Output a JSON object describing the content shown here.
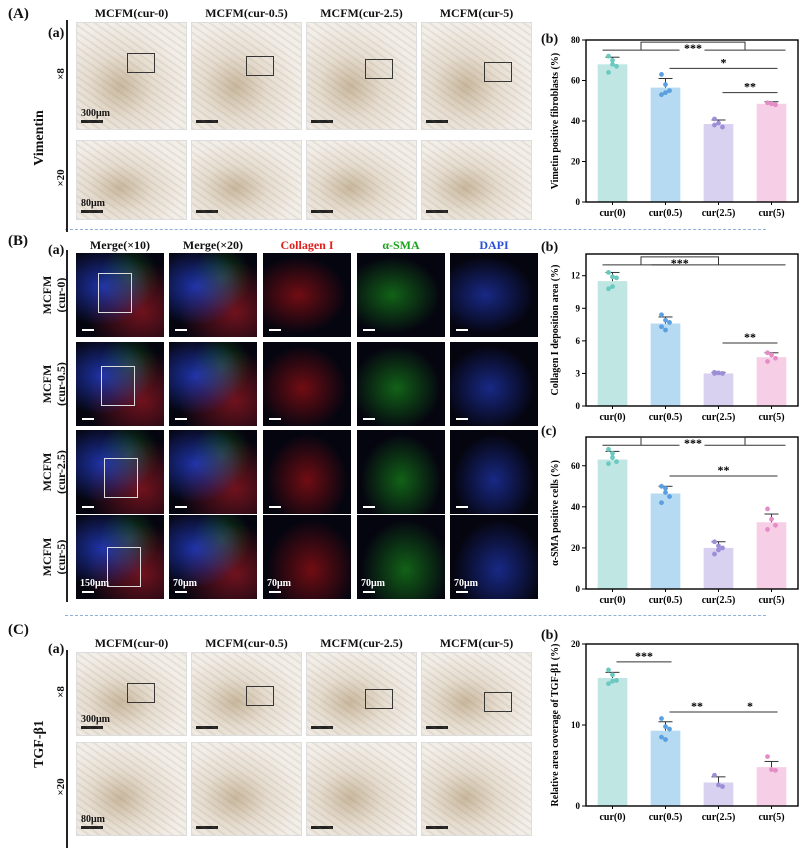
{
  "panelA": {
    "label": "(A)",
    "sub_a": "(a)",
    "sub_b": "(b)",
    "stain": "Vimentin",
    "rows": [
      "×8",
      "×20"
    ],
    "cols": [
      "MCFM(cur-0)",
      "MCFM(cur-0.5)",
      "MCFM(cur-2.5)",
      "MCFM(cur-5)"
    ],
    "scale_top": "300μm",
    "scale_bottom": "80μm"
  },
  "panelB": {
    "label": "(B)",
    "sub_a": "(a)",
    "sub_b": "(b)",
    "sub_c": "(c)",
    "cols": [
      "Merge(×10)",
      "Merge(×20)",
      "Collagen I",
      "α-SMA",
      "DAPI"
    ],
    "col_colors": [
      "#111111",
      "#111111",
      "#e0201c",
      "#1aa31a",
      "#2a4fd8"
    ],
    "rows": [
      [
        "MCFM",
        "(cur-0)"
      ],
      [
        "MCFM",
        "(cur-0.5)"
      ],
      [
        "MCFM",
        "(cur-2.5)"
      ],
      [
        "MCFM",
        "(cur-5)"
      ]
    ],
    "scales": [
      "150μm",
      "70μm",
      "70μm",
      "70μm",
      "70μm"
    ]
  },
  "panelC": {
    "label": "(C)",
    "sub_a": "(a)",
    "sub_b": "(b)",
    "stain": "TGF-β1",
    "rows": [
      "×8",
      "×20"
    ],
    "cols": [
      "MCFM(cur-0)",
      "MCFM(cur-0.5)",
      "MCFM(cur-2.5)",
      "MCFM(cur-5)"
    ],
    "scale_top": "300μm",
    "scale_bottom": "80μm"
  },
  "colors": {
    "bars": [
      "#bfe6e3",
      "#b7daf3",
      "#d8d1f0",
      "#f6cfe6"
    ],
    "dots": [
      "#6cc9c0",
      "#5a9fe0",
      "#9c8fd8",
      "#e58cc6"
    ]
  },
  "chart_data": [
    {
      "id": "A-b",
      "type": "bar",
      "ylabel": "Vimetin positive fibroblasts (%)",
      "categories": [
        "cur(0)",
        "cur(0.5)",
        "cur(2.5)",
        "cur(5)"
      ],
      "values": [
        68,
        56.5,
        38.5,
        48.5
      ],
      "errors": [
        3.5,
        4.5,
        2,
        1
      ],
      "points": [
        [
          72,
          70,
          67,
          64,
          68
        ],
        [
          63,
          58,
          55,
          53,
          54
        ],
        [
          41,
          39,
          37,
          38
        ],
        [
          49,
          48.5,
          48
        ]
      ],
      "ylim": [
        0,
        80
      ],
      "yticks": [
        0,
        20,
        40,
        60,
        80
      ],
      "significance": [
        {
          "label": "***",
          "from": 0,
          "to": [
            2,
            3
          ],
          "level": 75
        },
        {
          "label": "*",
          "from": 1,
          "to": 3,
          "level": 66
        },
        {
          "label": "**",
          "from": 2,
          "to": 3,
          "level": 54
        }
      ]
    },
    {
      "id": "B-b",
      "type": "bar",
      "ylabel": "Collagen I deposition area (%)",
      "categories": [
        "cur(0)",
        "cur(0.5)",
        "cur(2.5)",
        "cur(5)"
      ],
      "values": [
        11.5,
        7.6,
        3.0,
        4.5
      ],
      "errors": [
        0.8,
        0.6,
        0.1,
        0.4
      ],
      "points": [
        [
          12.3,
          11.9,
          11.8,
          10.8,
          11
        ],
        [
          8.4,
          7.9,
          7.7,
          7.3,
          7
        ],
        [
          3.1,
          3.05,
          3,
          3.0
        ],
        [
          4.9,
          4.7,
          4.4,
          4.1
        ]
      ],
      "ylim": [
        0,
        14
      ],
      "yticks": [
        0,
        3,
        6,
        9,
        12
      ],
      "significance": [
        {
          "label": "***",
          "from": 0,
          "to": [
            1,
            3
          ],
          "level": 13
        },
        {
          "label": "**",
          "from": 2,
          "to": 3,
          "level": 5.8
        }
      ]
    },
    {
      "id": "B-c",
      "type": "bar",
      "ylabel": "α-SMA positive cells (%)",
      "categories": [
        "cur(0)",
        "cur(0.5)",
        "cur(2.5)",
        "cur(5)"
      ],
      "values": [
        63,
        46.5,
        20,
        32.5
      ],
      "errors": [
        4,
        3.5,
        3,
        4
      ],
      "points": [
        [
          68,
          66,
          62,
          61,
          64
        ],
        [
          50,
          49,
          45,
          42,
          47
        ],
        [
          23,
          21,
          20,
          17,
          19
        ],
        [
          39,
          34,
          31,
          29
        ]
      ],
      "ylim": [
        0,
        74
      ],
      "yticks": [
        0,
        20,
        40,
        60
      ],
      "significance": [
        {
          "label": "***",
          "from": 0,
          "to": [
            2,
            3
          ],
          "level": 70
        },
        {
          "label": "**",
          "from": 1,
          "to": 3,
          "level": 55
        }
      ]
    },
    {
      "id": "C-b",
      "type": "bar",
      "ylabel": "Relative area coverage of TGF-β1 (%)",
      "categories": [
        "cur(0)",
        "cur(0.5)",
        "cur(2.5)",
        "cur(5)"
      ],
      "values": [
        15.8,
        9.3,
        2.9,
        4.8
      ],
      "errors": [
        0.7,
        1.1,
        0.7,
        0.7
      ],
      "points": [
        [
          16.8,
          16.2,
          15.5,
          15.1,
          15.4
        ],
        [
          10.8,
          9.8,
          9.5,
          8.5,
          8.2
        ],
        [
          3.8,
          2.6,
          2.4
        ],
        [
          6.1,
          4.5,
          4.4
        ]
      ],
      "ylim": [
        0,
        20
      ],
      "yticks": [
        0,
        10,
        20
      ],
      "significance": [
        {
          "label": "***",
          "from": 0,
          "to": 1,
          "level": 17.8
        },
        {
          "label": "**",
          "from": 1,
          "to": 2,
          "level": 11.6
        },
        {
          "label": "*",
          "from": 2,
          "to": 3,
          "level": 11.6
        }
      ]
    }
  ]
}
